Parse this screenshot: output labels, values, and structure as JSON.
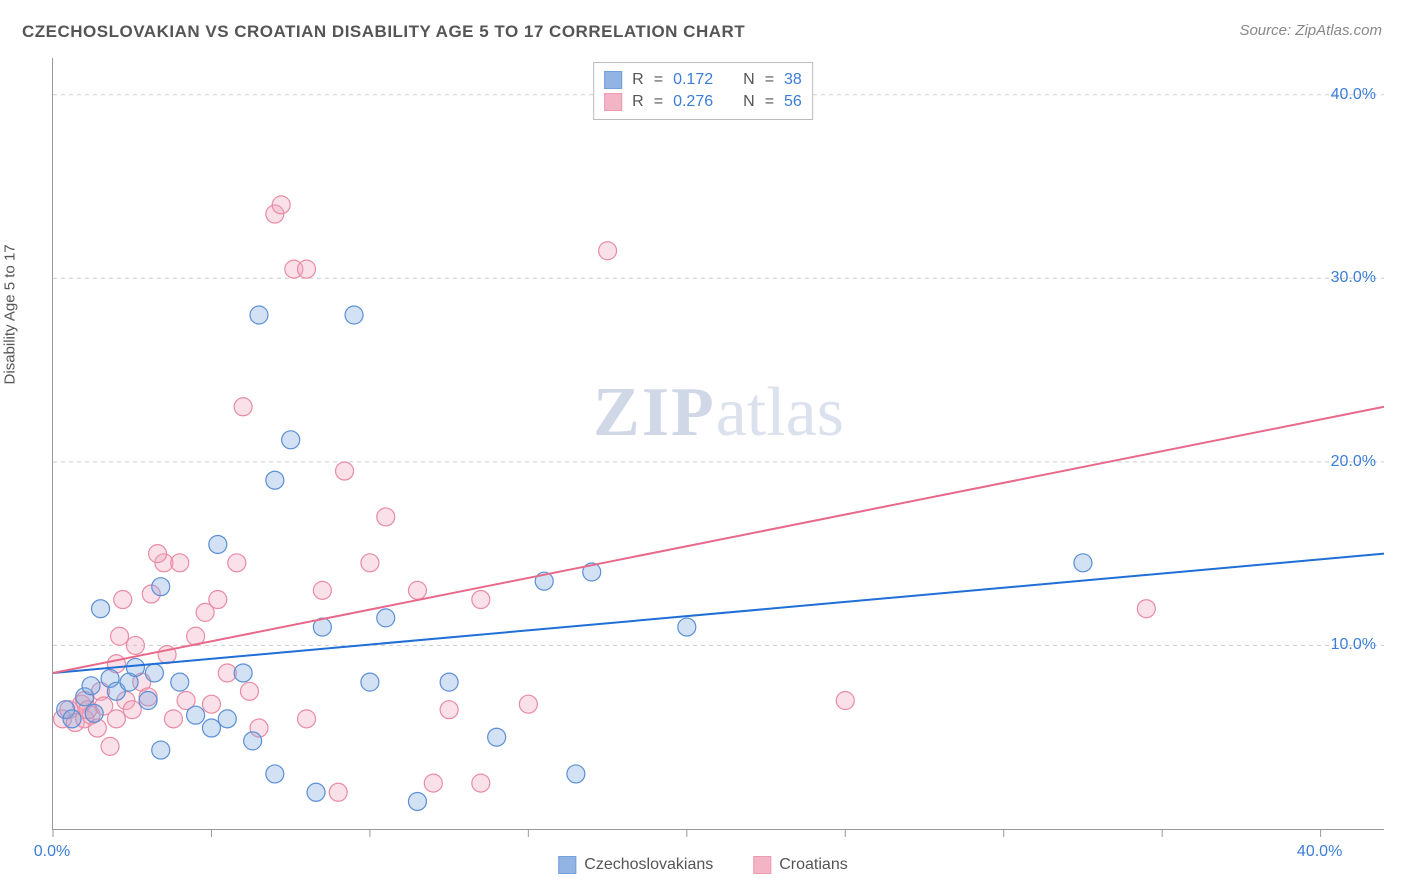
{
  "chart": {
    "type": "scatter",
    "title": "CZECHOSLOVAKIAN VS CROATIAN DISABILITY AGE 5 TO 17 CORRELATION CHART",
    "source_label": "Source: ZipAtlas.com",
    "y_axis_label": "Disability Age 5 to 17",
    "watermark_zip": "ZIP",
    "watermark_atlas": "atlas",
    "background_color": "#ffffff",
    "grid_color": "#cccccc",
    "axis_color": "#999999",
    "title_color": "#555555",
    "title_fontsize": 17,
    "label_fontsize": 15,
    "tick_label_color": "#3b7dd8",
    "tick_label_fontsize": 16,
    "xlim": [
      0,
      42
    ],
    "ylim": [
      0,
      42
    ],
    "x_ticks": [
      0,
      5,
      10,
      15,
      20,
      25,
      30,
      35,
      40
    ],
    "x_tick_labels_visible": {
      "0": "0.0%",
      "40": "40.0%"
    },
    "y_ticks": [
      10,
      20,
      30,
      40
    ],
    "y_tick_labels": [
      "10.0%",
      "20.0%",
      "30.0%",
      "40.0%"
    ],
    "marker_radius": 9,
    "marker_opacity_fill": 0.35,
    "marker_stroke_width": 1.2,
    "trend_line_width": 2,
    "series": {
      "czechoslovakians": {
        "label": "Czechoslovakians",
        "fill_color": "#7fa8e0",
        "stroke_color": "#5b8fd6",
        "trend_color": "#1f6fd6",
        "R": "0.172",
        "N": "38",
        "trend_start_y": 8.5,
        "trend_end_y": 15.0,
        "points": [
          [
            0.4,
            6.5
          ],
          [
            0.6,
            6.0
          ],
          [
            1.0,
            7.2
          ],
          [
            1.2,
            7.8
          ],
          [
            1.3,
            6.3
          ],
          [
            1.5,
            12.0
          ],
          [
            1.8,
            8.2
          ],
          [
            2.0,
            7.5
          ],
          [
            2.4,
            8.0
          ],
          [
            2.6,
            8.8
          ],
          [
            3.0,
            7.0
          ],
          [
            3.2,
            8.5
          ],
          [
            3.4,
            13.2
          ],
          [
            3.4,
            4.3
          ],
          [
            4.0,
            8.0
          ],
          [
            4.5,
            6.2
          ],
          [
            5.0,
            5.5
          ],
          [
            5.2,
            15.5
          ],
          [
            5.5,
            6.0
          ],
          [
            6.0,
            8.5
          ],
          [
            6.3,
            4.8
          ],
          [
            6.5,
            28.0
          ],
          [
            7.0,
            3.0
          ],
          [
            7.0,
            19.0
          ],
          [
            7.5,
            21.2
          ],
          [
            8.3,
            2.0
          ],
          [
            8.5,
            11.0
          ],
          [
            9.5,
            28.0
          ],
          [
            10.0,
            8.0
          ],
          [
            10.5,
            11.5
          ],
          [
            11.5,
            1.5
          ],
          [
            12.5,
            8.0
          ],
          [
            14.0,
            5.0
          ],
          [
            16.5,
            3.0
          ],
          [
            17.0,
            14.0
          ],
          [
            20.0,
            11.0
          ],
          [
            32.5,
            14.5
          ],
          [
            15.5,
            13.5
          ]
        ]
      },
      "croatians": {
        "label": "Croatians",
        "fill_color": "#f2a7bd",
        "stroke_color": "#e98ba5",
        "trend_color": "#e86a8a",
        "R": "0.276",
        "N": "56",
        "trend_start_y": 8.5,
        "trend_end_y": 23.0,
        "points": [
          [
            0.3,
            6.0
          ],
          [
            0.5,
            6.5
          ],
          [
            0.7,
            5.8
          ],
          [
            0.9,
            6.8
          ],
          [
            1.0,
            7.0
          ],
          [
            1.0,
            6.0
          ],
          [
            1.2,
            6.2
          ],
          [
            1.4,
            5.5
          ],
          [
            1.5,
            7.5
          ],
          [
            1.6,
            6.7
          ],
          [
            1.8,
            4.5
          ],
          [
            2.0,
            9.0
          ],
          [
            2.1,
            10.5
          ],
          [
            2.2,
            12.5
          ],
          [
            2.3,
            7.0
          ],
          [
            2.5,
            6.5
          ],
          [
            2.6,
            10.0
          ],
          [
            2.8,
            8.0
          ],
          [
            3.0,
            7.2
          ],
          [
            3.1,
            12.8
          ],
          [
            3.5,
            14.5
          ],
          [
            3.6,
            9.5
          ],
          [
            3.8,
            6.0
          ],
          [
            4.0,
            14.5
          ],
          [
            4.2,
            7.0
          ],
          [
            4.5,
            10.5
          ],
          [
            5.0,
            6.8
          ],
          [
            5.2,
            12.5
          ],
          [
            5.5,
            8.5
          ],
          [
            5.8,
            14.5
          ],
          [
            6.0,
            23.0
          ],
          [
            6.2,
            7.5
          ],
          [
            6.5,
            5.5
          ],
          [
            7.0,
            33.5
          ],
          [
            7.2,
            34.0
          ],
          [
            7.6,
            30.5
          ],
          [
            8.0,
            6.0
          ],
          [
            8.0,
            30.5
          ],
          [
            8.5,
            13.0
          ],
          [
            9.0,
            2.0
          ],
          [
            9.2,
            19.5
          ],
          [
            10.0,
            14.5
          ],
          [
            10.5,
            17.0
          ],
          [
            11.5,
            13.0
          ],
          [
            12.0,
            2.5
          ],
          [
            12.5,
            6.5
          ],
          [
            13.5,
            12.5
          ],
          [
            13.5,
            2.5
          ],
          [
            15.0,
            6.8
          ],
          [
            17.5,
            31.5
          ],
          [
            25.0,
            7.0
          ],
          [
            34.5,
            12.0
          ],
          [
            3.3,
            15.0
          ],
          [
            4.8,
            11.8
          ],
          [
            2.0,
            6.0
          ],
          [
            1.1,
            6.5
          ]
        ]
      }
    },
    "stats_legend": {
      "R_label": "R",
      "N_label": "N",
      "equals": "="
    }
  }
}
